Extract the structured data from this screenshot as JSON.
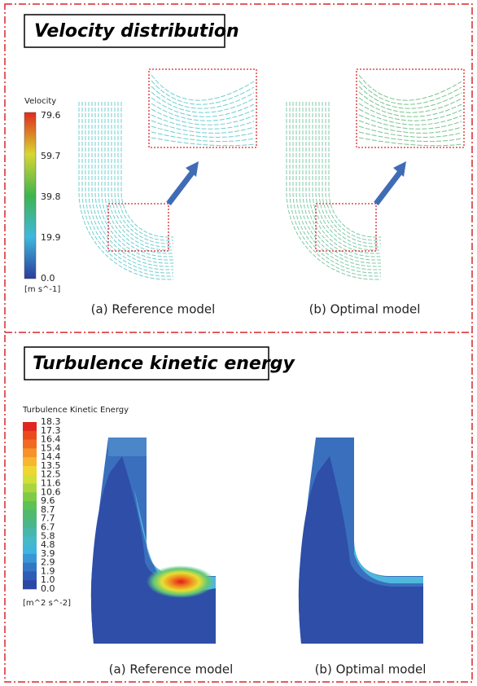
{
  "velocity": {
    "title": "Velocity distribution",
    "legend_title": "Velocity",
    "legend_ticks": [
      "79.6",
      "59.7",
      "39.8",
      "19.9",
      "0.0"
    ],
    "legend_unit": "[m s^-1]",
    "captions": [
      "(a) Reference model",
      "(b) Optimal model"
    ]
  },
  "turbulence": {
    "title": "Turbulence kinetic energy",
    "legend_title": "Turbulence Kinetic Energy",
    "legend_ticks": [
      "18.3",
      "17.3",
      "16.4",
      "15.4",
      "14.4",
      "13.5",
      "12.5",
      "11.6",
      "10.6",
      "9.6",
      "8.7",
      "7.7",
      "6.7",
      "5.8",
      "4.8",
      "3.9",
      "2.9",
      "1.9",
      "1.0",
      "0.0"
    ],
    "legend_unit": "[m^2 s^-2]",
    "captions": [
      "(a) Reference model",
      "(b) Optimal model"
    ]
  }
}
